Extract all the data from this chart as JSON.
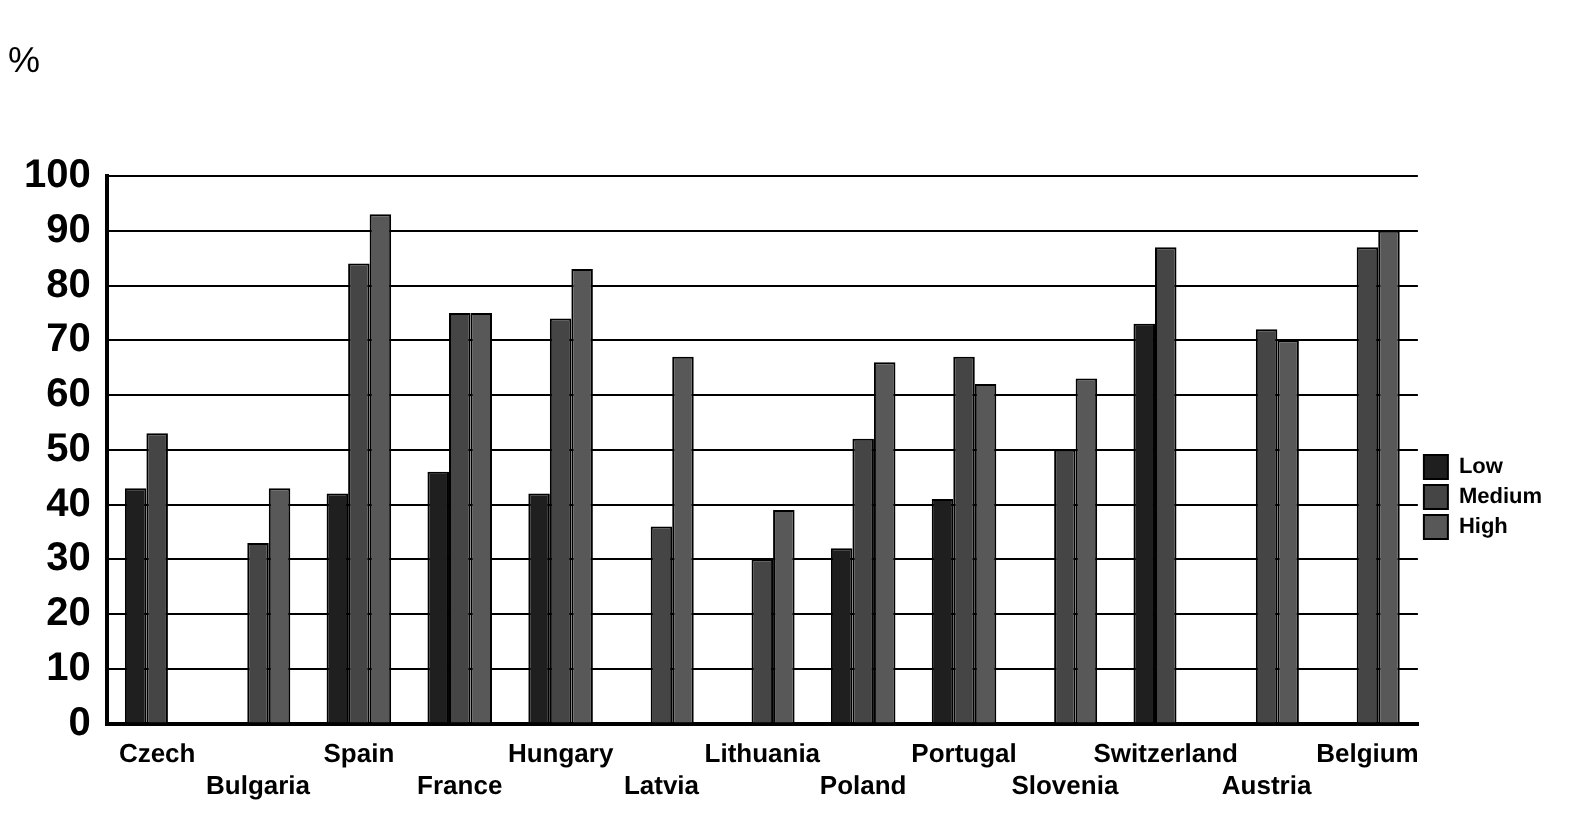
{
  "chart_data": {
    "type": "bar",
    "ylabel": "%",
    "categories": [
      "Czech",
      "Bulgaria",
      "Spain",
      "France",
      "Hungary",
      "Latvia",
      "Lithuania",
      "Poland",
      "Portugal",
      "Slovenia",
      "Switzerland",
      "Austria",
      "Belgium"
    ],
    "series": [
      {
        "name": "Low",
        "color": "#1f1f1f",
        "values": [
          43,
          null,
          42,
          46,
          42,
          null,
          null,
          32,
          41,
          null,
          73,
          null,
          null
        ]
      },
      {
        "name": "Medium",
        "color": "#454545",
        "values": [
          53,
          33,
          84,
          75,
          74,
          36,
          30,
          52,
          67,
          50,
          87,
          72,
          87
        ]
      },
      {
        "name": "High",
        "color": "#585858",
        "values": [
          null,
          43,
          93,
          75,
          83,
          67,
          39,
          66,
          62,
          63,
          null,
          70,
          90
        ]
      }
    ],
    "ylim": [
      0,
      100
    ],
    "yticks": [
      0,
      10,
      20,
      30,
      40,
      50,
      60,
      70,
      80,
      90,
      100
    ],
    "grid": "y",
    "legend": "right"
  }
}
